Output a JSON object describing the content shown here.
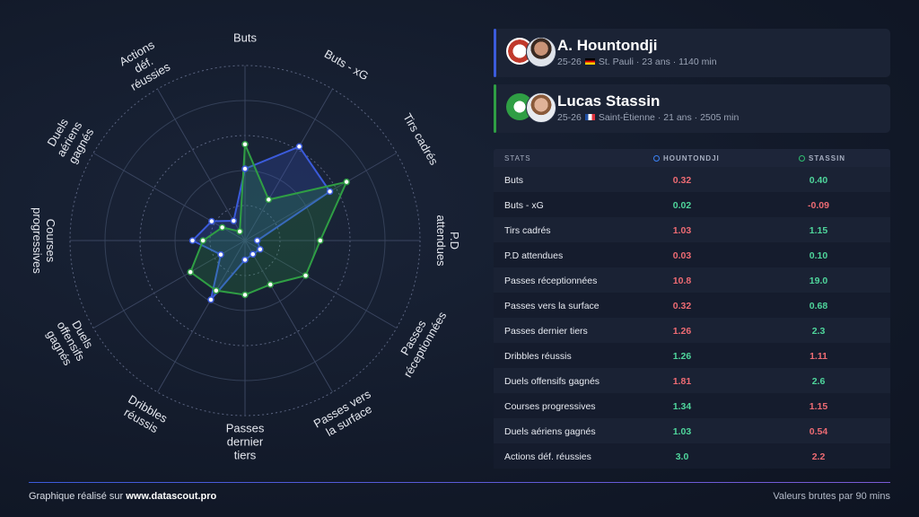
{
  "chart_data": {
    "type": "radar",
    "rlim": [
      0,
      100
    ],
    "axes": [
      [
        "Buts"
      ],
      [
        "Buts - xG"
      ],
      [
        "Tirs cadrés"
      ],
      [
        "P.D",
        "attendues"
      ],
      [
        "Passes",
        "réceptionnées"
      ],
      [
        "Passes vers",
        "la surface"
      ],
      [
        "Passes",
        "dernier",
        "tiers"
      ],
      [
        "Dribbles",
        "réussis"
      ],
      [
        "Duels",
        "offensifs",
        "gagnés"
      ],
      [
        "Courses",
        "progressives"
      ],
      [
        "Duels",
        "aériens",
        "gagnés"
      ],
      [
        "Actions",
        "déf.",
        "réussies"
      ]
    ],
    "series": [
      {
        "name": "HOUNTONDJI",
        "color": "#3b5bdb",
        "values": [
          41,
          62,
          56,
          7,
          10,
          9,
          11,
          39,
          16,
          30,
          22,
          13
        ]
      },
      {
        "name": "STASSIN",
        "color": "#2f9e44",
        "values": [
          55,
          27,
          67,
          43,
          40,
          29,
          31,
          33,
          36,
          24,
          15,
          6
        ]
      }
    ]
  },
  "players": [
    {
      "name": "A. Hountondji",
      "season": "25-26",
      "details": "St. Pauli · 23 ans · 1140 min"
    },
    {
      "name": "Lucas Stassin",
      "season": "25-26",
      "details": "Saint-Étienne · 21 ans · 2505 min"
    }
  ],
  "table": {
    "header": "STATS",
    "rows": [
      [
        "Buts",
        "0.32",
        "0.40"
      ],
      [
        "Buts - xG",
        "0.02",
        "-0.09"
      ],
      [
        "Tirs cadrés",
        "1.03",
        "1.15"
      ],
      [
        "P.D attendues",
        "0.03",
        "0.10"
      ],
      [
        "Passes réceptionnées",
        "10.8",
        "19.0"
      ],
      [
        "Passes vers la surface",
        "0.32",
        "0.68"
      ],
      [
        "Passes dernier tiers",
        "1.26",
        "2.3"
      ],
      [
        "Dribbles réussis",
        "1.26",
        "1.11"
      ],
      [
        "Duels offensifs gagnés",
        "1.81",
        "2.6"
      ],
      [
        "Courses progressives",
        "1.34",
        "1.15"
      ],
      [
        "Duels aériens gagnés",
        "1.03",
        "0.54"
      ],
      [
        "Actions déf. réussies",
        "3.0",
        "2.2"
      ]
    ],
    "cell_colors": [
      [
        "#ee6b73",
        "#4fd69c"
      ],
      [
        "#4fd69c",
        "#ee6b73"
      ],
      [
        "#ee6b73",
        "#4fd69c"
      ],
      [
        "#ee6b73",
        "#4fd69c"
      ],
      [
        "#ee6b73",
        "#4fd69c"
      ],
      [
        "#ee6b73",
        "#4fd69c"
      ],
      [
        "#ee6b73",
        "#4fd69c"
      ],
      [
        "#4fd69c",
        "#ee6b73"
      ],
      [
        "#ee6b73",
        "#4fd69c"
      ],
      [
        "#4fd69c",
        "#ee6b73"
      ],
      [
        "#4fd69c",
        "#ee6b73"
      ],
      [
        "#4fd69c",
        "#ee6b73"
      ]
    ]
  },
  "footer": {
    "credit": "Graphique réalisé sur ",
    "site": "www.datascout.pro",
    "note": "Valeurs brutes par 90 mins"
  }
}
